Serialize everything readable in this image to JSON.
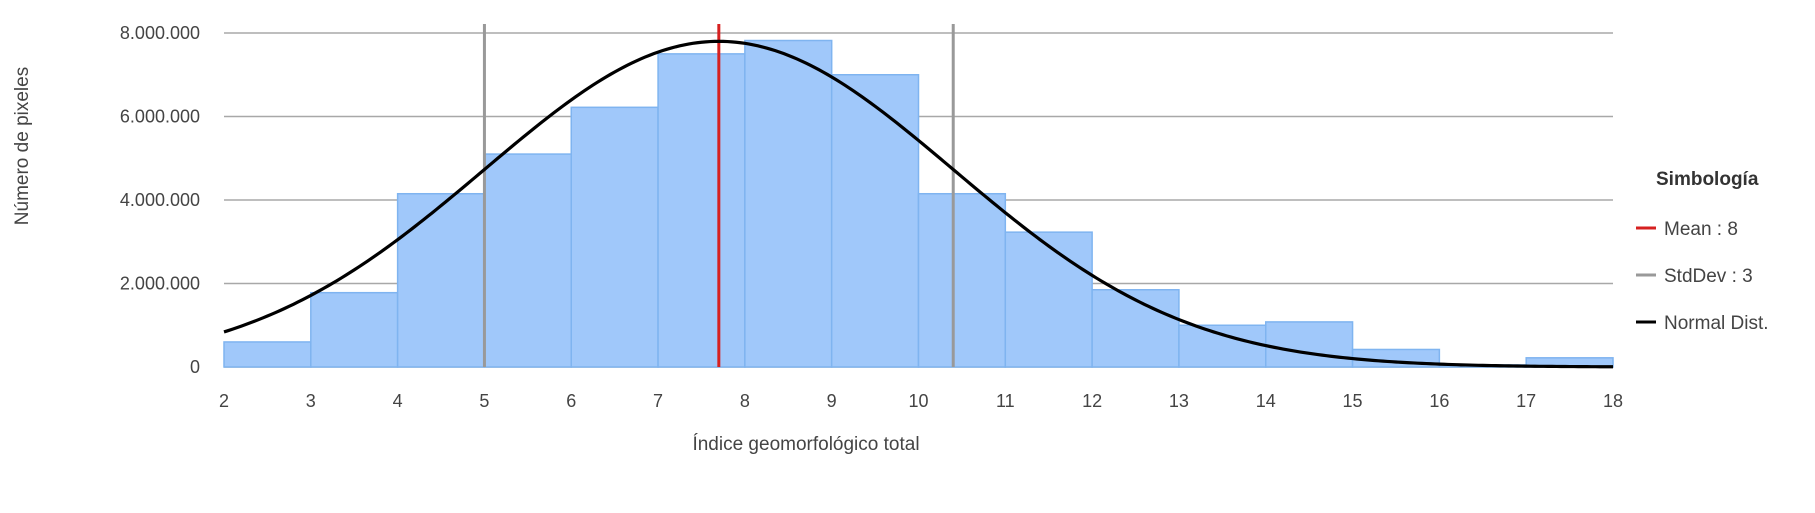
{
  "chart_data": {
    "type": "bar",
    "title": "",
    "xlabel": "Índice geomorfológico total",
    "ylabel": "Número de pixeles",
    "xlim": [
      2,
      18
    ],
    "ylim": [
      0,
      8000000
    ],
    "x_ticks": [
      "2",
      "3",
      "4",
      "5",
      "6",
      "7",
      "8",
      "9",
      "10",
      "11",
      "12",
      "13",
      "14",
      "15",
      "16",
      "17",
      "18"
    ],
    "y_ticks": [
      {
        "value": 0,
        "label": "0"
      },
      {
        "value": 2000000,
        "label": "2.000.000"
      },
      {
        "value": 4000000,
        "label": "4.000.000"
      },
      {
        "value": 6000000,
        "label": "6.000.000"
      },
      {
        "value": 8000000,
        "label": "8.000.000"
      }
    ],
    "grid": true,
    "bins": [
      {
        "x0": 2,
        "x1": 3,
        "value": 600000
      },
      {
        "x0": 3,
        "x1": 4,
        "value": 1780000
      },
      {
        "x0": 4,
        "x1": 5,
        "value": 4150000
      },
      {
        "x0": 5,
        "x1": 6,
        "value": 5100000
      },
      {
        "x0": 6,
        "x1": 7,
        "value": 6220000
      },
      {
        "x0": 7,
        "x1": 8,
        "value": 7500000
      },
      {
        "x0": 8,
        "x1": 9,
        "value": 7820000
      },
      {
        "x0": 9,
        "x1": 10,
        "value": 7000000
      },
      {
        "x0": 10,
        "x1": 11,
        "value": 4150000
      },
      {
        "x0": 11,
        "x1": 12,
        "value": 3230000
      },
      {
        "x0": 12,
        "x1": 13,
        "value": 1850000
      },
      {
        "x0": 13,
        "x1": 14,
        "value": 1000000
      },
      {
        "x0": 14,
        "x1": 15,
        "value": 1080000
      },
      {
        "x0": 15,
        "x1": 16,
        "value": 420000
      },
      {
        "x0": 16,
        "x1": 17,
        "value": 50000
      },
      {
        "x0": 17,
        "x1": 18,
        "value": 220000
      }
    ],
    "mean_line": {
      "x": 7.7
    },
    "stddev_lines": [
      {
        "x": 5.0
      },
      {
        "x": 10.4
      }
    ],
    "normal_curve": {
      "mean": 7.7,
      "sd": 2.7,
      "peak": 7800000
    },
    "colors": {
      "bar_fill": "#a0c8fa",
      "bar_stroke": "#7fb4f0",
      "mean": "#d62020",
      "stddev": "#999999",
      "normal": "#000000",
      "grid": "#a8a8a8"
    },
    "legend": {
      "position": "right",
      "title": "Simbología",
      "items": [
        {
          "label": "Mean : 8",
          "color": "#d62020"
        },
        {
          "label": "StdDev : 3",
          "color": "#999999"
        },
        {
          "label": "Normal Dist.",
          "color": "#000000"
        }
      ]
    }
  }
}
